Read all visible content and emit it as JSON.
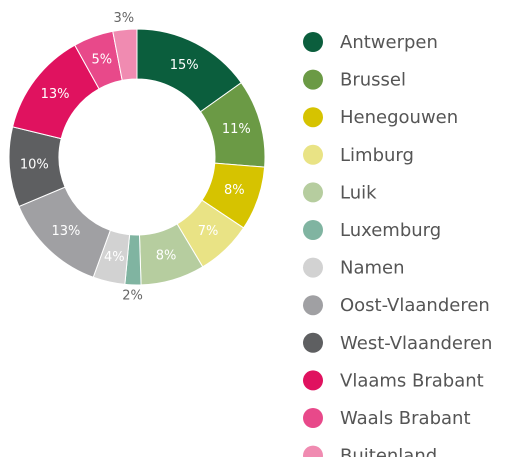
{
  "chart_data": {
    "type": "donut",
    "categories": [
      "Antwerpen",
      "Brussel",
      "Henegouwen",
      "Limburg",
      "Luik",
      "Luxemburg",
      "Namen",
      "Oost-Vlaanderen",
      "West-Vlaanderen",
      "Vlaams Brabant",
      "Waals Brabant",
      "Buitenland"
    ],
    "values": [
      15,
      11,
      8,
      7,
      8,
      2,
      4,
      13,
      10,
      13,
      5,
      3
    ],
    "value_labels": [
      "15%",
      "11%",
      "8%",
      "7%",
      "8%",
      "2%",
      "4%",
      "13%",
      "10%",
      "13%",
      "5%",
      "3%"
    ],
    "colors": [
      "#0b5e3d",
      "#6b9a45",
      "#d6c300",
      "#e9e385",
      "#b6cd9f",
      "#80b4a1",
      "#d2d2d2",
      "#a0a0a3",
      "#5e5f61",
      "#e0125f",
      "#e8498a",
      "#f08bb1"
    ],
    "legend": "right"
  }
}
